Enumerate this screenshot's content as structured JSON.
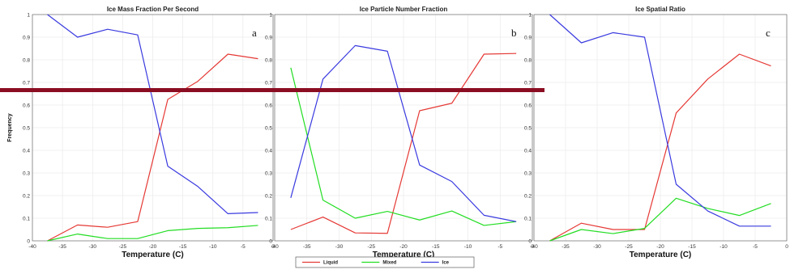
{
  "figure": {
    "ylabel": "Frequency",
    "overlay_line_color": "#8b0d22"
  },
  "legend": {
    "entries": [
      {
        "name": "Liquid",
        "color": "#e53935"
      },
      {
        "name": "Mixed",
        "color": "#22dd22"
      },
      {
        "name": "Ice",
        "color": "#3a3ae0"
      }
    ]
  },
  "chart_data": [
    {
      "type": "line",
      "title": "Ice Mass Fraction Per Second",
      "panel_label": "a",
      "xlabel": "Temperature (C)",
      "ylabel": "Frequency",
      "xlim": [
        -40,
        0
      ],
      "ylim": [
        0,
        1
      ],
      "xticks": [
        -40,
        -35,
        -30,
        -25,
        -20,
        -15,
        -10,
        -5,
        0
      ],
      "yticks": [
        0,
        0.1,
        0.2,
        0.3,
        0.4,
        0.5,
        0.6,
        0.7,
        0.8,
        0.9,
        1
      ],
      "grid": true,
      "x": [
        -37.5,
        -32.5,
        -27.5,
        -22.5,
        -17.5,
        -12.5,
        -7.5,
        -2.5
      ],
      "series": [
        {
          "name": "Liquid",
          "color": "#e53935",
          "values": [
            0.0,
            0.07,
            0.06,
            0.085,
            0.625,
            0.705,
            0.825,
            0.805
          ]
        },
        {
          "name": "Mixed",
          "color": "#22dd22",
          "values": [
            0.0,
            0.03,
            0.01,
            0.01,
            0.045,
            0.055,
            0.058,
            0.068
          ]
        },
        {
          "name": "Ice",
          "color": "#3a3ae0",
          "values": [
            1.0,
            0.9,
            0.935,
            0.91,
            0.33,
            0.24,
            0.12,
            0.125
          ]
        }
      ]
    },
    {
      "type": "line",
      "title": "Ice Particle Number Fraction",
      "panel_label": "b",
      "xlabel": "Temperature (C)",
      "ylabel": "",
      "xlim": [
        -40,
        0
      ],
      "ylim": [
        0,
        1
      ],
      "xticks": [
        -40,
        -35,
        -30,
        -25,
        -20,
        -15,
        -10,
        -5,
        0
      ],
      "yticks": [
        0,
        0.1,
        0.2,
        0.3,
        0.4,
        0.5,
        0.6,
        0.7,
        0.8,
        0.9,
        1
      ],
      "grid": true,
      "x": [
        -37.5,
        -32.5,
        -27.5,
        -22.5,
        -17.5,
        -12.5,
        -7.5,
        -2.5
      ],
      "series": [
        {
          "name": "Liquid",
          "color": "#e53935",
          "values": [
            0.05,
            0.105,
            0.035,
            0.033,
            0.575,
            0.608,
            0.825,
            0.828
          ]
        },
        {
          "name": "Mixed",
          "color": "#22dd22",
          "values": [
            0.765,
            0.18,
            0.1,
            0.13,
            0.092,
            0.132,
            0.068,
            0.085
          ]
        },
        {
          "name": "Ice",
          "color": "#3a3ae0",
          "values": [
            0.19,
            0.715,
            0.863,
            0.838,
            0.335,
            0.262,
            0.113,
            0.085
          ]
        }
      ]
    },
    {
      "type": "line",
      "title": "Ice Spatial Ratio",
      "panel_label": "c",
      "xlabel": "Temperature (C)",
      "ylabel": "",
      "xlim": [
        -40,
        0
      ],
      "ylim": [
        0,
        1
      ],
      "xticks": [
        -40,
        -35,
        -30,
        -25,
        -20,
        -15,
        -10,
        -5,
        0
      ],
      "yticks": [
        0,
        0.1,
        0.2,
        0.3,
        0.4,
        0.5,
        0.6,
        0.7,
        0.8,
        0.9,
        1
      ],
      "grid": true,
      "x": [
        -37.5,
        -32.5,
        -27.5,
        -22.5,
        -17.5,
        -12.5,
        -7.5,
        -2.5
      ],
      "series": [
        {
          "name": "Liquid",
          "color": "#e53935",
          "values": [
            0.0,
            0.078,
            0.05,
            0.05,
            0.565,
            0.715,
            0.825,
            0.773
          ]
        },
        {
          "name": "Mixed",
          "color": "#22dd22",
          "values": [
            0.0,
            0.05,
            0.032,
            0.055,
            0.188,
            0.143,
            0.112,
            0.165
          ]
        },
        {
          "name": "Ice",
          "color": "#3a3ae0",
          "values": [
            1.0,
            0.875,
            0.92,
            0.9,
            0.25,
            0.132,
            0.065,
            0.065
          ]
        }
      ]
    }
  ]
}
